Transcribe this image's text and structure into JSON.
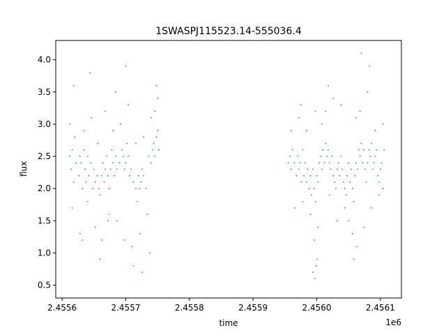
{
  "chart_data": {
    "type": "scatter",
    "title": "1SWASPJ115523.14-555036.4",
    "xlabel": "time",
    "ylabel": "flux",
    "x_offset_label": "1e6",
    "xlim": [
      2455590,
      2456133
    ],
    "ylim": [
      0.3,
      4.3
    ],
    "x_ticks": [
      {
        "value": 2455600,
        "label": "2.4556"
      },
      {
        "value": 2455700,
        "label": "2.4557"
      },
      {
        "value": 2455800,
        "label": "2.4558"
      },
      {
        "value": 2455900,
        "label": "2.4559"
      },
      {
        "value": 2456000,
        "label": "2.4560"
      },
      {
        "value": 2456100,
        "label": "2.4561"
      }
    ],
    "y_ticks": [
      {
        "value": 0.5,
        "label": "0.5"
      },
      {
        "value": 1.0,
        "label": "1.0"
      },
      {
        "value": 1.5,
        "label": "1.5"
      },
      {
        "value": 2.0,
        "label": "2.0"
      },
      {
        "value": 2.5,
        "label": "2.5"
      },
      {
        "value": 3.0,
        "label": "3.0"
      },
      {
        "value": 3.5,
        "label": "3.5"
      },
      {
        "value": 4.0,
        "label": "4.0"
      }
    ],
    "grid": false,
    "marker_color": "#1f77b4",
    "series": [
      {
        "x": [
          2455612,
          2455614,
          2455616,
          2455618,
          2455622,
          2455626,
          2455628,
          2455630,
          2455632,
          2455634,
          2455636,
          2455638,
          2455640,
          2455642,
          2455645,
          2455648,
          2455650,
          2455652,
          2455655,
          2455658,
          2455660,
          2455662,
          2455664,
          2455666,
          2455668,
          2455670,
          2455672,
          2455674,
          2455676,
          2455678,
          2455680,
          2455682,
          2455684,
          2455686,
          2455690,
          2455694,
          2455696,
          2455698,
          2455700,
          2455702,
          2455704,
          2455706,
          2455708,
          2455712,
          2455716,
          2455718,
          2455720,
          2455722,
          2455724,
          2455726,
          2455728,
          2455732,
          2455736,
          2455740,
          2455742,
          2455744,
          2455746,
          2455748,
          2455750,
          2455752,
          2455612,
          2455616,
          2455620,
          2455628,
          2455634,
          2455640,
          2455646,
          2455652,
          2455656,
          2455662,
          2455668,
          2455674,
          2455680,
          2455686,
          2455692,
          2455698,
          2455704,
          2455710,
          2455716,
          2455722,
          2455728,
          2455734,
          2455740,
          2455746,
          2455750,
          2455618,
          2455632,
          2455644,
          2455660,
          2455672,
          2455684,
          2455700,
          2455712,
          2455726,
          2455738,
          2455748
        ],
        "y": [
          2.5,
          2.3,
          2.6,
          2.1,
          2.4,
          2.2,
          2.5,
          2.4,
          2.0,
          2.6,
          2.3,
          2.1,
          2.5,
          2.2,
          2.4,
          2.0,
          2.3,
          2.1,
          2.2,
          2.0,
          1.9,
          2.2,
          2.4,
          2.1,
          2.3,
          2.5,
          2.2,
          2.0,
          2.3,
          2.6,
          2.4,
          2.2,
          2.5,
          2.3,
          2.4,
          2.6,
          2.5,
          2.3,
          2.4,
          2.7,
          2.5,
          2.2,
          2.3,
          2.1,
          2.0,
          1.8,
          2.2,
          2.0,
          2.1,
          2.3,
          2.2,
          2.0,
          2.5,
          2.4,
          2.6,
          2.7,
          2.5,
          2.8,
          2.9,
          2.6,
          3.0,
          1.7,
          2.8,
          1.3,
          2.9,
          1.8,
          3.1,
          1.4,
          2.7,
          1.2,
          3.2,
          1.6,
          2.9,
          1.5,
          3.0,
          1.2,
          3.3,
          1.1,
          2.7,
          1.3,
          2.8,
          1.6,
          3.1,
          3.2,
          3.4,
          3.6,
          1.2,
          3.8,
          0.9,
          1.5,
          3.5,
          3.9,
          0.8,
          0.7,
          1.0,
          3.6
        ]
      },
      {
        "x": [
          2455955,
          2455958,
          2455960,
          2455962,
          2455965,
          2455968,
          2455970,
          2455972,
          2455974,
          2455976,
          2455978,
          2455980,
          2455982,
          2455984,
          2455986,
          2455988,
          2455990,
          2455992,
          2455994,
          2455996,
          2455998,
          2456000,
          2456002,
          2456004,
          2456006,
          2456008,
          2456010,
          2456012,
          2456014,
          2456016,
          2456018,
          2456020,
          2456022,
          2456024,
          2456026,
          2456028,
          2456030,
          2456032,
          2456034,
          2456036,
          2456038,
          2456040,
          2456042,
          2456044,
          2456046,
          2456048,
          2456050,
          2456052,
          2456054,
          2456056,
          2456058,
          2456060,
          2456062,
          2456064,
          2456066,
          2456068,
          2456070,
          2456072,
          2456074,
          2456076,
          2456078,
          2456080,
          2456082,
          2456084,
          2456086,
          2456088,
          2456090,
          2456092,
          2456094,
          2456096,
          2456098,
          2456100,
          2456102,
          2456104,
          2456106,
          2455960,
          2455966,
          2455972,
          2455978,
          2455984,
          2455990,
          2455996,
          2455998,
          2456002,
          2456008,
          2456014,
          2456020,
          2456026,
          2456032,
          2456038,
          2456044,
          2456050,
          2456056,
          2456062,
          2456068,
          2456074,
          2456080,
          2456086,
          2456092,
          2456098,
          2456104,
          2455975,
          2455999,
          2456018,
          2456063,
          2456083,
          2455994,
          2455997,
          2456001,
          2456058,
          2456070
        ],
        "y": [
          2.4,
          2.5,
          2.3,
          2.6,
          2.4,
          2.2,
          2.5,
          2.3,
          2.4,
          2.1,
          2.6,
          2.2,
          2.4,
          2.1,
          2.3,
          2.0,
          2.2,
          1.9,
          2.3,
          2.0,
          1.8,
          2.2,
          2.1,
          2.4,
          2.5,
          2.3,
          2.6,
          2.4,
          2.7,
          2.5,
          2.6,
          2.4,
          2.3,
          2.5,
          2.2,
          2.1,
          2.0,
          2.3,
          2.4,
          2.2,
          2.5,
          2.3,
          2.1,
          2.0,
          1.9,
          2.2,
          2.4,
          2.1,
          2.3,
          2.0,
          1.8,
          2.2,
          2.4,
          2.3,
          2.6,
          2.5,
          2.7,
          2.4,
          2.6,
          2.3,
          2.1,
          2.4,
          2.6,
          2.5,
          2.7,
          2.3,
          2.4,
          2.5,
          2.6,
          2.2,
          2.1,
          2.3,
          2.4,
          2.0,
          2.6,
          2.9,
          1.7,
          3.1,
          1.8,
          2.9,
          1.6,
          1.2,
          3.2,
          1.4,
          3.0,
          3.2,
          1.9,
          3.4,
          1.5,
          3.3,
          1.7,
          1.5,
          1.3,
          3.1,
          3.2,
          1.4,
          3.5,
          1.7,
          2.9,
          1.9,
          3.0,
          3.3,
          0.8,
          3.6,
          1.1,
          3.9,
          0.7,
          0.6,
          0.9,
          0.9,
          4.1
        ]
      }
    ]
  }
}
